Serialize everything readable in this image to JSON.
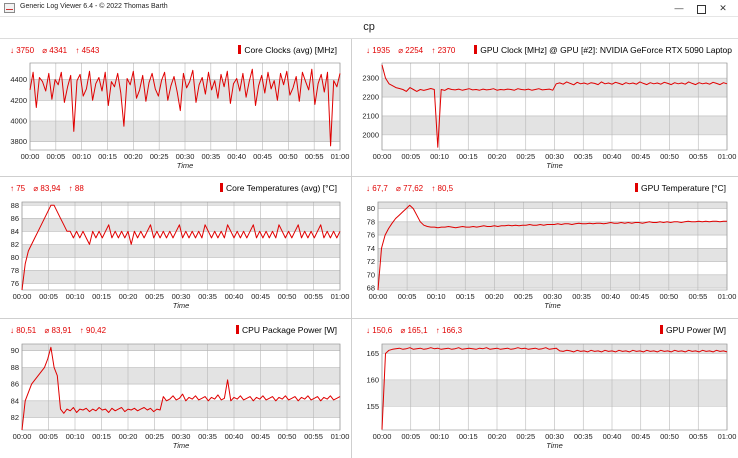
{
  "window": {
    "title": "Generic Log Viewer 6.4 - © 2022 Thomas Barth",
    "minimize": "—",
    "close": "✕"
  },
  "page": {
    "heading": "cp"
  },
  "colors": {
    "series": "#e00000",
    "band_light": "#ffffff",
    "band_dark": "#e3e3e3",
    "grid": "#b8b8b8"
  },
  "x_ticks": [
    "00:00",
    "00:05",
    "00:10",
    "00:15",
    "00:20",
    "00:25",
    "00:30",
    "00:35",
    "00:40",
    "00:45",
    "00:50",
    "00:55",
    "01:00"
  ],
  "chart_data": [
    {
      "id": "core-clocks",
      "type": "line",
      "title": "Core Clocks (avg) [MHz]",
      "stats": {
        "min": "↓ 3750",
        "avg": "⌀ 4341",
        "max": "↑ 4543"
      },
      "xlabel": "Time",
      "ylabel": "",
      "ylim": [
        3720,
        4560
      ],
      "yticks": [
        3800,
        4000,
        4200,
        4400
      ],
      "grid": true,
      "series": [
        {
          "values": [
            4300,
            4470,
            4130,
            4420,
            4380,
            4290,
            4460,
            4210,
            4400,
            4350,
            4470,
            4180,
            4330,
            4440,
            3900,
            4390,
            4450,
            4240,
            4310,
            4480,
            4200,
            4360,
            4420,
            4290,
            4470,
            4150,
            4380,
            4330,
            4460,
            4270,
            3950,
            4410,
            4350,
            4480,
            4220,
            4300,
            4440,
            4190,
            4370,
            4460,
            4310,
            4240,
            4390,
            4470,
            4200,
            4340,
            4430,
            4280,
            4100,
            4460,
            4320,
            4380,
            4490,
            4180,
            4350,
            4420,
            4260,
            4470,
            4300,
            4390,
            4220,
            4450,
            4330,
            4480,
            4170,
            4360,
            4410,
            4290,
            4460,
            4230,
            4380,
            4500,
            4150,
            4340,
            4440,
            4270,
            4470,
            4310,
            4390,
            4200,
            4460,
            4350,
            4480,
            4250,
            4320,
            4430,
            4190,
            4470,
            4380,
            4300,
            4500,
            4160,
            4360,
            4450,
            4280,
            4470,
            3760,
            4390,
            4330,
            4460
          ]
        }
      ]
    },
    {
      "id": "gpu-clock",
      "type": "line",
      "title": "GPU Clock [MHz] @ GPU [#2]: NVIDIA GeForce RTX 5090 Laptop",
      "stats": {
        "min": "↓ 1935",
        "avg": "⌀ 2254",
        "max": "↑ 2370"
      },
      "xlabel": "Time",
      "ylabel": "",
      "ylim": [
        1920,
        2380
      ],
      "yticks": [
        2000,
        2100,
        2200,
        2300
      ],
      "grid": true,
      "series": [
        {
          "values": [
            2370,
            2300,
            2270,
            2260,
            2250,
            2245,
            2240,
            2230,
            2250,
            2240,
            2230,
            2240,
            2235,
            2240,
            2245,
            2240,
            1935,
            2240,
            2235,
            2245,
            2240,
            2238,
            2242,
            2236,
            2240,
            2244,
            2238,
            2240,
            2236,
            2242,
            2238,
            2240,
            2244,
            2236,
            2240,
            2238,
            2242,
            2240,
            2236,
            2244,
            2240,
            2238,
            2242,
            2236,
            2240,
            2244,
            2238,
            2240,
            2242,
            2236,
            2270,
            2275,
            2268,
            2280,
            2272,
            2265,
            2278,
            2270,
            2274,
            2268,
            2276,
            2272,
            2266,
            2280,
            2270,
            2274,
            2268,
            2278,
            2272,
            2266,
            2276,
            2270,
            2274,
            2268,
            2280,
            2272,
            2266,
            2276,
            2270,
            2274,
            2268,
            2278,
            2272,
            2266,
            2276,
            2270,
            2274,
            2268,
            2280,
            2272,
            2266,
            2276,
            2270,
            2274,
            2268,
            2278,
            2272,
            2266,
            2276,
            2270
          ]
        }
      ]
    },
    {
      "id": "core-temps",
      "type": "line",
      "title": "Core Temperatures (avg) [°C]",
      "stats": {
        "min": "↑ 75",
        "avg": "⌀ 83,94",
        "max": "↑ 88"
      },
      "xlabel": "Time",
      "ylabel": "",
      "ylim": [
        75,
        88.5
      ],
      "yticks": [
        76,
        78,
        80,
        82,
        84,
        86,
        88
      ],
      "grid": true,
      "series": [
        {
          "values": [
            75,
            79,
            81,
            82,
            83,
            84,
            85,
            86,
            87,
            88,
            88,
            87,
            86,
            85,
            84,
            84,
            83,
            84,
            83,
            84,
            83,
            82,
            84,
            83,
            84,
            83,
            84,
            85,
            83,
            84,
            83,
            84,
            83,
            84,
            82,
            84,
            83,
            84,
            83,
            84,
            85,
            83,
            84,
            83,
            84,
            83,
            84,
            83,
            84,
            85,
            83,
            84,
            83,
            84,
            83,
            84,
            83,
            85,
            84,
            83,
            84,
            83,
            84,
            83,
            85,
            84,
            83,
            84,
            83,
            84,
            83,
            84,
            85,
            83,
            84,
            83,
            84,
            83,
            84,
            83,
            85,
            84,
            83,
            84,
            83,
            84,
            85,
            83,
            84,
            83,
            84,
            83,
            84,
            85,
            83,
            84,
            83,
            84,
            83,
            84
          ]
        }
      ]
    },
    {
      "id": "gpu-temp",
      "type": "line",
      "title": "GPU Temperature [°C]",
      "stats": {
        "min": "↓ 67,7",
        "avg": "⌀ 77,62",
        "max": "↑ 80,5"
      },
      "xlabel": "Time",
      "ylabel": "",
      "ylim": [
        67.7,
        81
      ],
      "yticks": [
        68,
        70,
        72,
        74,
        76,
        78,
        80
      ],
      "grid": true,
      "series": [
        {
          "values": [
            67.7,
            74,
            76,
            77,
            77.8,
            78.5,
            79,
            79.5,
            80,
            80.5,
            80,
            79,
            78,
            77.5,
            77.3,
            77.2,
            77.2,
            77.1,
            77.2,
            77.2,
            77.3,
            77.2,
            77.1,
            77.2,
            77.3,
            77.2,
            77.2,
            77.3,
            77.2,
            77.3,
            77.4,
            77.3,
            77.3,
            77.4,
            77.3,
            77.4,
            77.4,
            77.5,
            77.4,
            77.5,
            77.4,
            77.5,
            77.5,
            77.6,
            77.5,
            77.5,
            77.6,
            77.5,
            77.6,
            77.6,
            77.6,
            77.7,
            77.6,
            77.7,
            77.7,
            77.6,
            77.7,
            77.8,
            77.7,
            77.7,
            77.8,
            77.7,
            77.8,
            77.8,
            77.7,
            77.8,
            77.9,
            77.8,
            77.8,
            77.9,
            77.8,
            77.9,
            77.8,
            77.9,
            77.9,
            77.8,
            77.9,
            78,
            77.9,
            77.9,
            78,
            77.9,
            78,
            77.9,
            78,
            78,
            77.9,
            78,
            78.1,
            78,
            78,
            78.1,
            78,
            78.1,
            78,
            78.1,
            78.1,
            78,
            78.1,
            78.1
          ]
        }
      ]
    },
    {
      "id": "cpu-package-power",
      "type": "line",
      "title": "CPU Package Power [W]",
      "stats": {
        "min": "↓ 80,51",
        "avg": "⌀ 83,91",
        "max": "↑ 90,42"
      },
      "xlabel": "Time",
      "ylabel": "",
      "ylim": [
        80.5,
        90.8
      ],
      "yticks": [
        82,
        84,
        86,
        88,
        90
      ],
      "grid": true,
      "series": [
        {
          "values": [
            80.5,
            84,
            85,
            86,
            86.5,
            87,
            87.5,
            88,
            89,
            90.4,
            88,
            87,
            83,
            82.5,
            83,
            82.8,
            83.2,
            82.6,
            83,
            82.9,
            83.1,
            82.7,
            83,
            82.8,
            83.2,
            82.9,
            83,
            82.6,
            83.1,
            82.8,
            83,
            83.2,
            82.7,
            83,
            82.9,
            83.1,
            82.8,
            83,
            83.2,
            82.9,
            83.1,
            82.7,
            83,
            82.9,
            84.5,
            84,
            84.2,
            84.6,
            84.1,
            84.3,
            84.8,
            84,
            84.4,
            84.2,
            84.6,
            84.1,
            84.3,
            84.5,
            84,
            84.4,
            84.2,
            84.7,
            84.1,
            84.3,
            86.5,
            84,
            84.4,
            84.2,
            84.6,
            84.1,
            84.3,
            84.5,
            84,
            84.4,
            84.2,
            84.6,
            84.1,
            84.3,
            84.5,
            84,
            84.4,
            84.2,
            84.6,
            84.1,
            84.3,
            84.5,
            84,
            84.4,
            84.2,
            84.6,
            84.1,
            84.3,
            84.5,
            84,
            84.4,
            84.2,
            84.6,
            84.1,
            84.3,
            84.5
          ]
        }
      ]
    },
    {
      "id": "gpu-power",
      "type": "line",
      "title": "GPU Power [W]",
      "stats": {
        "min": "↓ 150,6",
        "avg": "⌀ 165,1",
        "max": "↑ 166,3"
      },
      "xlabel": "Time",
      "ylabel": "",
      "ylim": [
        150.5,
        166.8
      ],
      "yticks": [
        155,
        160,
        165
      ],
      "grid": true,
      "series": [
        {
          "values": [
            150.6,
            165,
            165.6,
            165.8,
            165.9,
            166,
            165.8,
            165.9,
            166.1,
            165.8,
            165.9,
            166,
            165.8,
            165.9,
            166.1,
            165.9,
            166,
            165.8,
            165.9,
            166,
            165.8,
            165.9,
            166.1,
            165.8,
            165.9,
            166,
            165.9,
            165.8,
            166,
            165.9,
            166.1,
            165.8,
            165.9,
            166,
            165.8,
            165.9,
            166,
            165.8,
            165.9,
            166.1,
            165.9,
            166,
            165.8,
            165.9,
            166,
            165.8,
            165.9,
            166.1,
            165.8,
            165.9,
            166,
            165.5,
            165.4,
            165.6,
            165.5,
            165.3,
            165.6,
            165.4,
            165.5,
            165.3,
            165.6,
            165.4,
            165.5,
            165.3,
            165.6,
            165.4,
            165.5,
            165.3,
            165.6,
            165.4,
            165.5,
            165.3,
            165.6,
            165.4,
            165.5,
            165.3,
            165.6,
            165.4,
            165.5,
            165.3,
            165.6,
            165.4,
            165.5,
            165.3,
            165.6,
            165.4,
            165.5,
            165.3,
            165.6,
            165.4,
            165.5,
            165.3,
            165.6,
            165.4,
            165.5,
            165.3,
            165.6,
            165.4,
            165.5,
            165.3
          ]
        }
      ]
    }
  ]
}
